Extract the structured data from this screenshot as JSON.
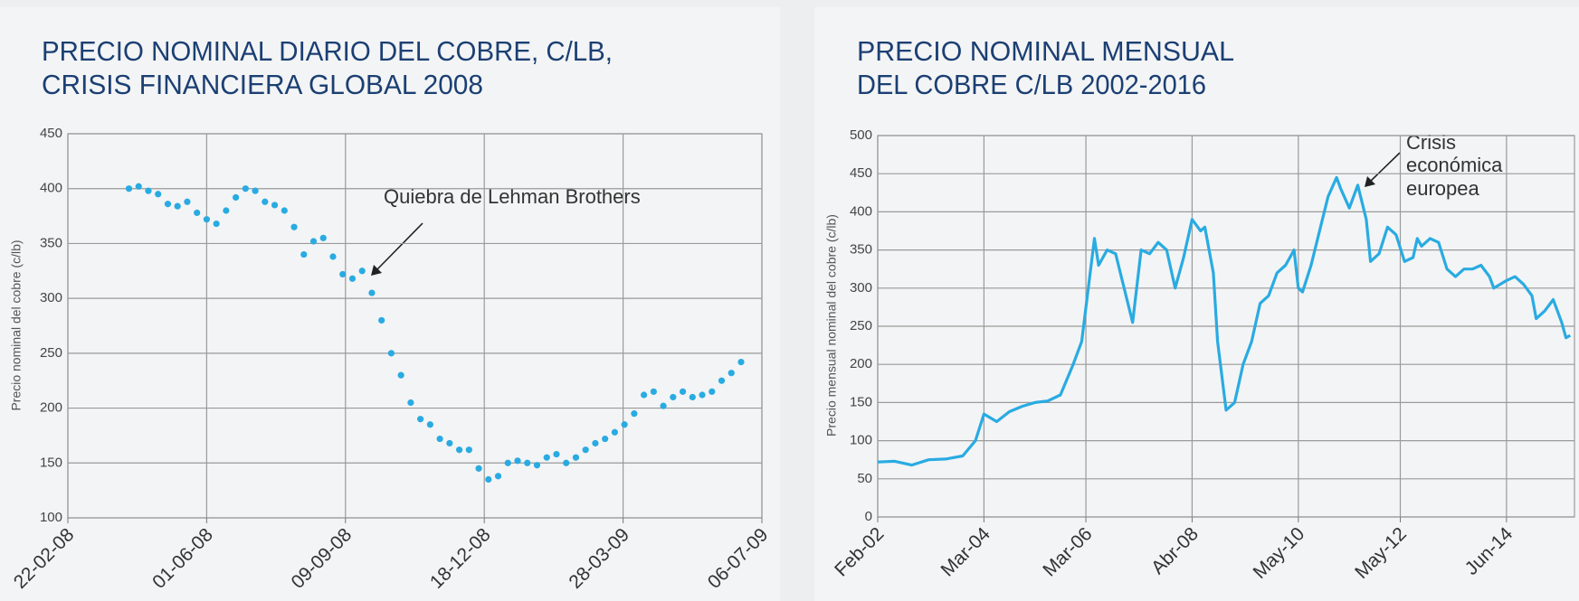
{
  "chart_data": [
    {
      "type": "scatter",
      "title": [
        "PRECIO NOMINAL DIARIO DEL COBRE, C/LB,",
        "CRISIS FINANCIERA GLOBAL 2008"
      ],
      "y_label": "Precio nominal del cobre (c/lb)",
      "annotation": "Quiebra de Lehman Brothers",
      "color": "#29abe2",
      "grid": true,
      "xlim": [
        "2008-02-22",
        "2009-07-06"
      ],
      "xticks": [
        {
          "value": "2008-02-22",
          "label": "22-02-08"
        },
        {
          "value": "2008-06-01",
          "label": "01-06-08"
        },
        {
          "value": "2008-09-09",
          "label": "09-09-08"
        },
        {
          "value": "2008-12-18",
          "label": "18-12-08"
        },
        {
          "value": "2009-03-28",
          "label": "28-03-09"
        },
        {
          "value": "2009-07-06",
          "label": "06-07-09"
        }
      ],
      "ylim": [
        100,
        450
      ],
      "yticks": [
        100,
        150,
        200,
        250,
        300,
        350,
        400,
        450
      ],
      "x": [
        "2008-04-06",
        "2008-04-13",
        "2008-04-20",
        "2008-04-27",
        "2008-05-04",
        "2008-05-11",
        "2008-05-18",
        "2008-05-25",
        "2008-06-01",
        "2008-06-08",
        "2008-06-15",
        "2008-06-22",
        "2008-06-29",
        "2008-07-06",
        "2008-07-13",
        "2008-07-20",
        "2008-07-27",
        "2008-08-03",
        "2008-08-10",
        "2008-08-17",
        "2008-08-24",
        "2008-08-31",
        "2008-09-07",
        "2008-09-14",
        "2008-09-21",
        "2008-09-28",
        "2008-10-05",
        "2008-10-12",
        "2008-10-19",
        "2008-10-26",
        "2008-11-02",
        "2008-11-09",
        "2008-11-16",
        "2008-11-23",
        "2008-11-30",
        "2008-12-07",
        "2008-12-14",
        "2008-12-21",
        "2008-12-28",
        "2009-01-04",
        "2009-01-11",
        "2009-01-18",
        "2009-01-25",
        "2009-02-01",
        "2009-02-08",
        "2009-02-15",
        "2009-02-22",
        "2009-03-01",
        "2009-03-08",
        "2009-03-15",
        "2009-03-22",
        "2009-03-29",
        "2009-04-05",
        "2009-04-12",
        "2009-04-19",
        "2009-04-26",
        "2009-05-03",
        "2009-05-10",
        "2009-05-17",
        "2009-05-24",
        "2009-05-31",
        "2009-06-07",
        "2009-06-14",
        "2009-06-21"
      ],
      "values": [
        400,
        402,
        398,
        395,
        386,
        384,
        388,
        378,
        372,
        368,
        380,
        392,
        400,
        398,
        388,
        385,
        380,
        365,
        340,
        352,
        355,
        338,
        322,
        318,
        325,
        305,
        280,
        250,
        230,
        205,
        190,
        185,
        172,
        168,
        162,
        162,
        145,
        135,
        138,
        150,
        152,
        150,
        148,
        155,
        158,
        150,
        155,
        162,
        168,
        172,
        178,
        185,
        195,
        212,
        215,
        202,
        210,
        215,
        210,
        212,
        215,
        225,
        232,
        242
      ]
    },
    {
      "type": "line",
      "title": [
        "PRECIO NOMINAL MENSUAL",
        "DEL COBRE C/LB 2002-2016"
      ],
      "y_label": "Precio mensual nominal del cobre (c/lb)",
      "annotation": [
        "Crisis",
        "económica",
        "europea"
      ],
      "color": "#29abe2",
      "grid": true,
      "xlim": [
        "2002-02",
        "2015-10"
      ],
      "xticks": [
        {
          "value": "2002-02",
          "label": "Feb-02"
        },
        {
          "value": "2004-03",
          "label": "Mar-04"
        },
        {
          "value": "2006-03",
          "label": "Mar-06"
        },
        {
          "value": "2008-04",
          "label": "Abr-08"
        },
        {
          "value": "2010-05",
          "label": "May-10"
        },
        {
          "value": "2012-05",
          "label": "May-12"
        },
        {
          "value": "2014-06",
          "label": "Jun-14"
        }
      ],
      "ylim": [
        0,
        500
      ],
      "yticks": [
        0,
        50,
        100,
        150,
        200,
        250,
        300,
        350,
        400,
        450,
        500
      ],
      "x": [
        "2002-02",
        "2002-06",
        "2002-10",
        "2003-02",
        "2003-06",
        "2003-10",
        "2004-01",
        "2004-03",
        "2004-06",
        "2004-09",
        "2004-12",
        "2005-03",
        "2005-06",
        "2005-09",
        "2005-12",
        "2006-02",
        "2006-05",
        "2006-06",
        "2006-08",
        "2006-10",
        "2006-12",
        "2007-02",
        "2007-04",
        "2007-06",
        "2007-08",
        "2007-10",
        "2007-12",
        "2008-02",
        "2008-04",
        "2008-06",
        "2008-07",
        "2008-09",
        "2008-10",
        "2008-12",
        "2009-02",
        "2009-04",
        "2009-06",
        "2009-08",
        "2009-10",
        "2009-12",
        "2010-02",
        "2010-04",
        "2010-05",
        "2010-06",
        "2010-08",
        "2010-10",
        "2010-12",
        "2011-02",
        "2011-03",
        "2011-05",
        "2011-07",
        "2011-09",
        "2011-10",
        "2011-12",
        "2012-02",
        "2012-04",
        "2012-06",
        "2012-08",
        "2012-09",
        "2012-10",
        "2012-12",
        "2013-02",
        "2013-04",
        "2013-06",
        "2013-08",
        "2013-10",
        "2013-12",
        "2014-02",
        "2014-03",
        "2014-06",
        "2014-08",
        "2014-10",
        "2014-12",
        "2015-01",
        "2015-03",
        "2015-05",
        "2015-07",
        "2015-08",
        "2015-09"
      ],
      "values": [
        72,
        73,
        68,
        75,
        76,
        80,
        100,
        135,
        125,
        138,
        145,
        150,
        152,
        160,
        200,
        230,
        365,
        330,
        350,
        345,
        300,
        255,
        350,
        345,
        360,
        350,
        300,
        340,
        390,
        375,
        380,
        320,
        230,
        140,
        150,
        200,
        230,
        280,
        290,
        320,
        330,
        350,
        300,
        295,
        330,
        375,
        420,
        445,
        430,
        405,
        435,
        390,
        335,
        345,
        380,
        370,
        335,
        340,
        365,
        355,
        365,
        360,
        325,
        315,
        325,
        325,
        330,
        315,
        300,
        310,
        315,
        305,
        290,
        260,
        270,
        285,
        255,
        235,
        238
      ]
    }
  ]
}
